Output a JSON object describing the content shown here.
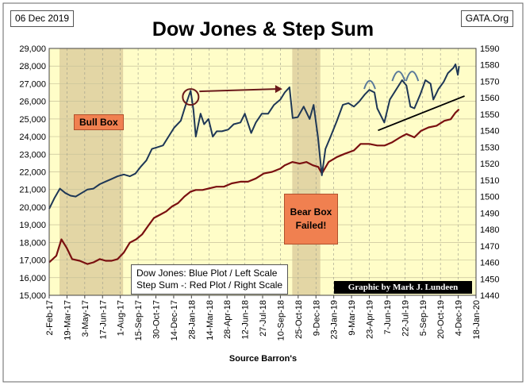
{
  "header": {
    "date": "06 Dec 2019",
    "site": "GATA.Org"
  },
  "footer": {
    "source": "Source Barron's",
    "credit": "Graphic by Mark J. Lundeen"
  },
  "annotations": {
    "bull_box": "Bull Box",
    "bear_box_line1": "Bear Box",
    "bear_box_line2": "Failed!",
    "legend_line1": "Dow Jones: Blue Plot / Left Scale",
    "legend_line2": "Step Sum -: Red Plot / Right Scale"
  },
  "colors": {
    "plot_bg": "#fffdc8",
    "box_fill": "#d9c89a",
    "dow": "#1e3756",
    "step": "#7a1010",
    "arrow": "#6b1a1a",
    "arc": "#5a7a9a",
    "trend": "#000000"
  },
  "chart_data": {
    "type": "line",
    "title": "Dow Jones & Step Sum",
    "xlabel": "Source Barron's",
    "x_ticks": [
      "2-Feb-17",
      "19-Mar-17",
      "3-May-17",
      "17-Jun-17",
      "1-Aug-17",
      "15-Sep-17",
      "30-Oct-17",
      "14-Dec-17",
      "28-Jan-18",
      "14-Mar-18",
      "28-Apr-18",
      "12-Jun-18",
      "27-Jul-18",
      "10-Sep-18",
      "25-Oct-18",
      "9-Dec-18",
      "23-Jan-19",
      "9-Mar-19",
      "23-Apr-19",
      "7-Jun-19",
      "22-Jul-19",
      "5-Sep-19",
      "20-Oct-19",
      "4-Dec-19",
      "18-Jan-20"
    ],
    "y_left": {
      "min": 15000,
      "max": 29000,
      "step": 1000,
      "ticks": [
        "15,000",
        "16,000",
        "17,000",
        "18,000",
        "19,000",
        "20,000",
        "21,000",
        "22,000",
        "23,000",
        "24,000",
        "25,000",
        "26,000",
        "27,000",
        "28,000",
        "29,000"
      ]
    },
    "y_right": {
      "min": 1440,
      "max": 1590,
      "step": 10,
      "ticks": [
        "1440",
        "1450",
        "1460",
        "1470",
        "1480",
        "1490",
        "1500",
        "1510",
        "1520",
        "1530",
        "1540",
        "1550",
        "1560",
        "1570",
        "1580",
        "1590"
      ]
    },
    "boxes": [
      {
        "name": "Bull Box",
        "from": "2017-02-28",
        "to": "2017-08-08"
      },
      {
        "name": "Bear Box",
        "from": "2018-10-10",
        "to": "2018-12-20"
      }
    ],
    "series": [
      {
        "name": "Dow Jones",
        "axis": "left",
        "x": [
          "2017-02-02",
          "2017-02-15",
          "2017-03-01",
          "2017-03-15",
          "2017-03-28",
          "2017-04-10",
          "2017-04-25",
          "2017-05-10",
          "2017-05-25",
          "2017-06-10",
          "2017-06-25",
          "2017-07-10",
          "2017-07-25",
          "2017-08-10",
          "2017-08-25",
          "2017-09-08",
          "2017-09-22",
          "2017-10-06",
          "2017-10-20",
          "2017-11-03",
          "2017-11-17",
          "2017-12-01",
          "2017-12-15",
          "2018-01-01",
          "2018-01-12",
          "2018-01-26",
          "2018-02-02",
          "2018-02-08",
          "2018-02-20",
          "2018-03-01",
          "2018-03-12",
          "2018-03-23",
          "2018-04-02",
          "2018-04-15",
          "2018-05-01",
          "2018-05-15",
          "2018-06-01",
          "2018-06-12",
          "2018-06-28",
          "2018-07-10",
          "2018-07-25",
          "2018-08-10",
          "2018-08-25",
          "2018-09-10",
          "2018-09-21",
          "2018-10-03",
          "2018-10-11",
          "2018-10-24",
          "2018-11-08",
          "2018-11-23",
          "2018-12-03",
          "2018-12-14",
          "2018-12-24",
          "2019-01-02",
          "2019-01-15",
          "2019-01-31",
          "2019-02-15",
          "2019-03-01",
          "2019-03-15",
          "2019-03-29",
          "2019-04-12",
          "2019-04-23",
          "2019-05-06",
          "2019-05-13",
          "2019-05-31",
          "2019-06-14",
          "2019-06-28",
          "2019-07-15",
          "2019-07-26",
          "2019-08-05",
          "2019-08-15",
          "2019-08-30",
          "2019-09-12",
          "2019-09-25",
          "2019-10-02",
          "2019-10-15",
          "2019-10-28",
          "2019-11-08",
          "2019-11-22",
          "2019-11-27",
          "2019-12-03",
          "2019-12-06"
        ],
        "values": [
          19900,
          20500,
          21050,
          20800,
          20650,
          20600,
          20800,
          21000,
          21050,
          21300,
          21450,
          21600,
          21750,
          21850,
          21750,
          21900,
          22300,
          22650,
          23300,
          23400,
          23500,
          24000,
          24500,
          24900,
          25700,
          26600,
          25520,
          24000,
          25300,
          24700,
          25000,
          24000,
          24300,
          24300,
          24400,
          24700,
          24800,
          25300,
          24200,
          24800,
          25300,
          25300,
          25800,
          26100,
          26500,
          26800,
          25050,
          25100,
          25700,
          25000,
          25800,
          24000,
          21800,
          23300,
          24000,
          24900,
          25800,
          25900,
          25700,
          26000,
          26400,
          26650,
          26500,
          25600,
          24800,
          26100,
          26600,
          27200,
          26900,
          25700,
          25600,
          26400,
          27200,
          27000,
          26100,
          26700,
          27100,
          27600,
          27900,
          28100,
          27500,
          28000
        ]
      },
      {
        "name": "Step Sum",
        "axis": "right",
        "x": [
          "2017-02-02",
          "2017-02-20",
          "2017-03-05",
          "2017-03-18",
          "2017-04-01",
          "2017-04-20",
          "2017-05-10",
          "2017-05-25",
          "2017-06-10",
          "2017-06-25",
          "2017-07-10",
          "2017-07-25",
          "2017-08-10",
          "2017-08-25",
          "2017-09-10",
          "2017-09-25",
          "2017-10-10",
          "2017-10-25",
          "2017-11-10",
          "2017-11-25",
          "2017-12-10",
          "2017-12-25",
          "2018-01-10",
          "2018-01-26",
          "2018-02-08",
          "2018-02-25",
          "2018-03-15",
          "2018-04-01",
          "2018-04-20",
          "2018-05-10",
          "2018-06-01",
          "2018-06-20",
          "2018-07-10",
          "2018-07-30",
          "2018-08-20",
          "2018-09-10",
          "2018-09-21",
          "2018-10-10",
          "2018-10-29",
          "2018-11-15",
          "2018-12-01",
          "2018-12-15",
          "2018-12-24",
          "2019-01-10",
          "2019-01-31",
          "2019-02-20",
          "2019-03-15",
          "2019-04-01",
          "2019-04-23",
          "2019-05-13",
          "2019-06-01",
          "2019-06-20",
          "2019-07-10",
          "2019-07-26",
          "2019-08-15",
          "2019-09-01",
          "2019-09-20",
          "2019-10-10",
          "2019-10-30",
          "2019-11-15",
          "2019-11-27",
          "2019-12-06"
        ],
        "values": [
          1460,
          1464,
          1474,
          1469,
          1462,
          1461,
          1459,
          1460,
          1462,
          1461,
          1461,
          1462,
          1466,
          1472,
          1474,
          1477,
          1482,
          1487,
          1489,
          1491,
          1494,
          1496,
          1500,
          1503,
          1504,
          1504,
          1505,
          1506,
          1506,
          1508,
          1509,
          1509,
          1511,
          1514,
          1515,
          1517,
          1519,
          1521,
          1520,
          1521,
          1519,
          1518,
          1514,
          1521,
          1524,
          1526,
          1528,
          1532,
          1532,
          1531,
          1531,
          1533,
          1536,
          1538,
          1536,
          1540,
          1542,
          1543,
          1546,
          1547,
          1551,
          1553
        ]
      }
    ]
  }
}
